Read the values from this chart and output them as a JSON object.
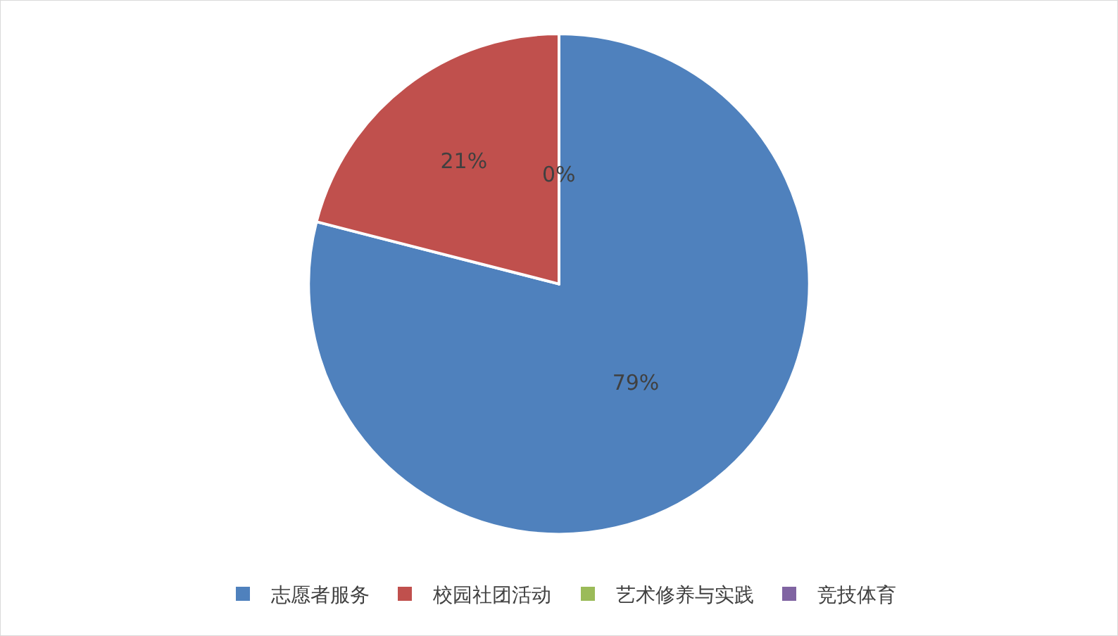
{
  "chart_data": {
    "type": "pie",
    "categories": [
      "志愿者服务",
      "校园社团活动",
      "艺术修养与实践",
      "竞技体育"
    ],
    "values": [
      79,
      21,
      0,
      0
    ],
    "colors": [
      "#4f81bd",
      "#c0504d",
      "#9bbb59",
      "#8064a2"
    ],
    "value_labels": [
      "79%",
      "21%",
      "0%",
      null
    ],
    "legend": "bottom"
  }
}
